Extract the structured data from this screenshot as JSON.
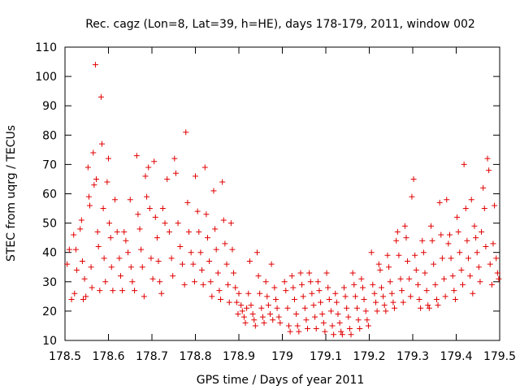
{
  "chart_data": {
    "type": "scatter",
    "title": "Rec. cagz (Lon=8, Lat=39, h=HE), days 178-179, 2011, window 002",
    "xlabel": "GPS time / Days of year 2011",
    "ylabel": "STEC from uqrg / TECUs",
    "xlim": [
      178.5,
      179.5
    ],
    "ylim": [
      10,
      110
    ],
    "xticks": [
      "178.5",
      "178.6",
      "178.7",
      "178.8",
      "178.9",
      "179",
      "179.1",
      "179.2",
      "179.3",
      "179.4",
      "179.5"
    ],
    "yticks": [
      "10",
      "20",
      "30",
      "40",
      "50",
      "60",
      "70",
      "80",
      "90",
      "100",
      "110"
    ],
    "grid": false,
    "marker": "+",
    "marker_color": "#e00000",
    "points": [
      [
        178.505,
        36
      ],
      [
        178.51,
        41
      ],
      [
        178.515,
        24
      ],
      [
        178.52,
        46
      ],
      [
        178.522,
        26
      ],
      [
        178.525,
        41
      ],
      [
        178.527,
        34
      ],
      [
        178.535,
        48
      ],
      [
        178.538,
        51
      ],
      [
        178.54,
        37
      ],
      [
        178.542,
        24
      ],
      [
        178.545,
        31
      ],
      [
        178.548,
        25
      ],
      [
        178.553,
        69
      ],
      [
        178.555,
        59
      ],
      [
        178.557,
        56
      ],
      [
        178.56,
        35
      ],
      [
        178.562,
        28
      ],
      [
        178.565,
        74
      ],
      [
        178.567,
        63
      ],
      [
        178.57,
        104
      ],
      [
        178.572,
        65
      ],
      [
        178.575,
        47
      ],
      [
        178.577,
        42
      ],
      [
        178.58,
        27
      ],
      [
        178.583,
        93
      ],
      [
        178.585,
        77
      ],
      [
        178.588,
        55
      ],
      [
        178.59,
        38
      ],
      [
        178.593,
        30
      ],
      [
        178.597,
        64
      ],
      [
        178.6,
        72
      ],
      [
        178.602,
        50
      ],
      [
        178.605,
        45
      ],
      [
        178.607,
        35
      ],
      [
        178.61,
        27
      ],
      [
        178.615,
        58
      ],
      [
        178.62,
        47
      ],
      [
        178.625,
        38
      ],
      [
        178.628,
        32
      ],
      [
        178.632,
        27
      ],
      [
        178.636,
        47
      ],
      [
        178.64,
        44
      ],
      [
        178.645,
        40
      ],
      [
        178.65,
        58
      ],
      [
        178.652,
        35
      ],
      [
        178.655,
        30
      ],
      [
        178.66,
        27
      ],
      [
        178.665,
        73
      ],
      [
        178.668,
        53
      ],
      [
        178.672,
        48
      ],
      [
        178.675,
        41
      ],
      [
        178.678,
        35
      ],
      [
        178.682,
        25
      ],
      [
        178.685,
        66
      ],
      [
        178.688,
        59
      ],
      [
        178.692,
        69
      ],
      [
        178.695,
        55
      ],
      [
        178.698,
        38
      ],
      [
        178.702,
        31
      ],
      [
        178.705,
        71
      ],
      [
        178.708,
        52
      ],
      [
        178.712,
        45
      ],
      [
        178.715,
        37
      ],
      [
        178.718,
        30
      ],
      [
        178.722,
        26
      ],
      [
        178.725,
        55
      ],
      [
        178.73,
        50
      ],
      [
        178.735,
        65
      ],
      [
        178.74,
        47
      ],
      [
        178.745,
        38
      ],
      [
        178.748,
        32
      ],
      [
        178.752,
        72
      ],
      [
        178.755,
        67
      ],
      [
        178.76,
        50
      ],
      [
        178.765,
        42
      ],
      [
        178.77,
        36
      ],
      [
        178.775,
        29
      ],
      [
        178.778,
        81
      ],
      [
        178.782,
        57
      ],
      [
        178.785,
        47
      ],
      [
        178.79,
        40
      ],
      [
        178.795,
        36
      ],
      [
        178.798,
        30
      ],
      [
        178.8,
        66
      ],
      [
        178.805,
        54
      ],
      [
        178.808,
        47
      ],
      [
        178.812,
        40
      ],
      [
        178.815,
        34
      ],
      [
        178.818,
        29
      ],
      [
        178.822,
        69
      ],
      [
        178.825,
        53
      ],
      [
        178.828,
        45
      ],
      [
        178.832,
        37
      ],
      [
        178.835,
        30
      ],
      [
        178.838,
        25
      ],
      [
        178.842,
        61
      ],
      [
        178.845,
        48
      ],
      [
        178.848,
        41
      ],
      [
        178.852,
        33
      ],
      [
        178.855,
        27
      ],
      [
        178.858,
        24
      ],
      [
        178.862,
        64
      ],
      [
        178.865,
        51
      ],
      [
        178.868,
        43
      ],
      [
        178.872,
        36
      ],
      [
        178.875,
        29
      ],
      [
        178.878,
        23
      ],
      [
        178.882,
        50
      ],
      [
        178.885,
        41
      ],
      [
        178.888,
        33
      ],
      [
        178.892,
        28
      ],
      [
        178.895,
        23
      ],
      [
        178.898,
        19
      ],
      [
        178.9,
        26
      ],
      [
        178.905,
        22
      ],
      [
        178.908,
        20
      ],
      [
        178.912,
        18
      ],
      [
        178.915,
        16
      ],
      [
        178.918,
        21
      ],
      [
        178.922,
        26
      ],
      [
        178.925,
        37
      ],
      [
        178.928,
        22
      ],
      [
        178.932,
        19
      ],
      [
        178.935,
        17
      ],
      [
        178.938,
        15
      ],
      [
        178.942,
        40
      ],
      [
        178.945,
        32
      ],
      [
        178.948,
        26
      ],
      [
        178.952,
        21
      ],
      [
        178.955,
        18
      ],
      [
        178.958,
        16
      ],
      [
        178.962,
        30
      ],
      [
        178.965,
        25
      ],
      [
        178.968,
        22
      ],
      [
        178.972,
        19
      ],
      [
        178.975,
        36
      ],
      [
        178.978,
        17
      ],
      [
        178.982,
        28
      ],
      [
        178.985,
        24
      ],
      [
        178.988,
        21
      ],
      [
        178.992,
        18
      ],
      [
        178.995,
        16
      ],
      [
        179.005,
        30
      ],
      [
        179.008,
        27
      ],
      [
        179.012,
        21
      ],
      [
        179.015,
        15
      ],
      [
        179.018,
        13
      ],
      [
        179.022,
        32
      ],
      [
        179.025,
        28
      ],
      [
        179.028,
        24
      ],
      [
        179.032,
        19
      ],
      [
        179.035,
        15
      ],
      [
        179.038,
        13
      ],
      [
        179.042,
        33
      ],
      [
        179.045,
        29
      ],
      [
        179.048,
        25
      ],
      [
        179.052,
        21
      ],
      [
        179.055,
        17
      ],
      [
        179.058,
        14
      ],
      [
        179.062,
        33
      ],
      [
        179.065,
        30
      ],
      [
        179.068,
        26
      ],
      [
        179.072,
        22
      ],
      [
        179.075,
        18
      ],
      [
        179.078,
        14
      ],
      [
        179.082,
        30
      ],
      [
        179.085,
        27
      ],
      [
        179.088,
        23
      ],
      [
        179.092,
        19
      ],
      [
        179.095,
        16
      ],
      [
        179.098,
        13
      ],
      [
        179.102,
        33
      ],
      [
        179.105,
        28
      ],
      [
        179.108,
        24
      ],
      [
        179.112,
        20
      ],
      [
        179.115,
        15
      ],
      [
        179.118,
        12
      ],
      [
        179.122,
        26
      ],
      [
        179.125,
        23
      ],
      [
        179.128,
        19
      ],
      [
        179.132,
        16
      ],
      [
        179.135,
        13
      ],
      [
        179.138,
        12
      ],
      [
        179.142,
        28
      ],
      [
        179.145,
        25
      ],
      [
        179.148,
        21
      ],
      [
        179.152,
        18
      ],
      [
        179.155,
        14
      ],
      [
        179.158,
        12
      ],
      [
        179.162,
        33
      ],
      [
        179.165,
        29
      ],
      [
        179.168,
        25
      ],
      [
        179.172,
        21
      ],
      [
        179.175,
        17
      ],
      [
        179.178,
        14
      ],
      [
        179.182,
        31
      ],
      [
        179.185,
        28
      ],
      [
        179.188,
        24
      ],
      [
        179.192,
        20
      ],
      [
        179.195,
        17
      ],
      [
        179.198,
        15
      ],
      [
        179.205,
        40
      ],
      [
        179.208,
        29
      ],
      [
        179.212,
        26
      ],
      [
        179.215,
        23
      ],
      [
        179.218,
        20
      ],
      [
        179.222,
        36
      ],
      [
        179.225,
        34
      ],
      [
        179.228,
        28
      ],
      [
        179.232,
        25
      ],
      [
        179.235,
        22
      ],
      [
        179.238,
        20
      ],
      [
        179.242,
        39
      ],
      [
        179.245,
        35
      ],
      [
        179.248,
        30
      ],
      [
        179.252,
        26
      ],
      [
        179.255,
        23
      ],
      [
        179.258,
        21
      ],
      [
        179.262,
        44
      ],
      [
        179.265,
        47
      ],
      [
        179.268,
        39
      ],
      [
        179.272,
        31
      ],
      [
        179.275,
        27
      ],
      [
        179.278,
        23
      ],
      [
        179.282,
        49
      ],
      [
        179.285,
        45
      ],
      [
        179.288,
        37
      ],
      [
        179.292,
        31
      ],
      [
        179.295,
        25
      ],
      [
        179.298,
        59
      ],
      [
        179.302,
        65
      ],
      [
        179.305,
        39
      ],
      [
        179.308,
        34
      ],
      [
        179.312,
        29
      ],
      [
        179.315,
        24
      ],
      [
        179.318,
        21
      ],
      [
        179.322,
        44
      ],
      [
        179.325,
        40
      ],
      [
        179.328,
        33
      ],
      [
        179.332,
        27
      ],
      [
        179.335,
        22
      ],
      [
        179.338,
        21
      ],
      [
        179.342,
        49
      ],
      [
        179.345,
        44
      ],
      [
        179.348,
        36
      ],
      [
        179.352,
        29
      ],
      [
        179.355,
        24
      ],
      [
        179.358,
        22
      ],
      [
        179.362,
        57
      ],
      [
        179.365,
        46
      ],
      [
        179.368,
        38
      ],
      [
        179.372,
        31
      ],
      [
        179.375,
        25
      ],
      [
        179.378,
        58
      ],
      [
        179.382,
        43
      ],
      [
        179.385,
        46
      ],
      [
        179.388,
        38
      ],
      [
        179.392,
        32
      ],
      [
        179.395,
        27
      ],
      [
        179.398,
        24
      ],
      [
        179.402,
        52
      ],
      [
        179.405,
        47
      ],
      [
        179.408,
        40
      ],
      [
        179.412,
        34
      ],
      [
        179.415,
        29
      ],
      [
        179.418,
        70
      ],
      [
        179.422,
        55
      ],
      [
        179.425,
        44
      ],
      [
        179.428,
        38
      ],
      [
        179.432,
        32
      ],
      [
        179.435,
        58
      ],
      [
        179.438,
        26
      ],
      [
        179.442,
        49
      ],
      [
        179.445,
        45
      ],
      [
        179.448,
        40
      ],
      [
        179.452,
        35
      ],
      [
        179.455,
        30
      ],
      [
        179.458,
        47
      ],
      [
        179.462,
        62
      ],
      [
        179.465,
        55
      ],
      [
        179.468,
        42
      ],
      [
        179.472,
        72
      ],
      [
        179.475,
        68
      ],
      [
        179.478,
        36
      ],
      [
        179.482,
        29
      ],
      [
        179.485,
        43
      ],
      [
        179.488,
        56
      ],
      [
        179.492,
        38
      ],
      [
        179.495,
        33
      ],
      [
        179.498,
        31
      ]
    ]
  }
}
